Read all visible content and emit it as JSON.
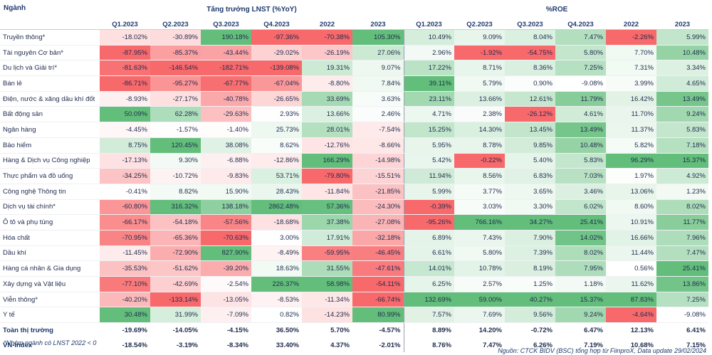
{
  "header": {
    "sector_label": "Ngành",
    "lnst_title": "Tăng trưởng LNST (%YoY)",
    "roe_title": "%ROE"
  },
  "columns": [
    "Q1.2023",
    "Q2.2023",
    "Q3.2023",
    "Q4.2023",
    "2022",
    "2023",
    "Q1.2023",
    "Q2.2023",
    "Q3.2023",
    "Q4.2023",
    "2022",
    "2023"
  ],
  "rows": [
    {
      "name": "Truyền thông*",
      "v": [
        "-18.02%",
        "-30.89%",
        "190.18%",
        "-97.36%",
        "-70.38%",
        "105.30%",
        "10.49%",
        "9.09%",
        "8.04%",
        "7.47%",
        "-2.26%",
        "5.99%"
      ],
      "n": [
        -18.02,
        -30.89,
        190.18,
        -97.36,
        -70.38,
        105.3,
        10.49,
        9.09,
        8.04,
        7.47,
        -2.26,
        5.99
      ]
    },
    {
      "name": "Tài nguyên Cơ bản*",
      "v": [
        "-87.95%",
        "-85.37%",
        "-43.44%",
        "-29.02%",
        "-26.19%",
        "27.06%",
        "2.96%",
        "-1.92%",
        "-54.75%",
        "5.80%",
        "7.70%",
        "10.48%"
      ],
      "n": [
        -87.95,
        -85.37,
        -43.44,
        -29.02,
        -26.19,
        27.06,
        2.96,
        -1.92,
        -54.75,
        5.8,
        7.7,
        10.48
      ]
    },
    {
      "name": "Du lịch và Giải trí*",
      "v": [
        "-81.63%",
        "-146.54%",
        "-182.71%",
        "-139.08%",
        "19.31%",
        "9.07%",
        "17.22%",
        "8.71%",
        "8.36%",
        "7.25%",
        "7.31%",
        "3.34%"
      ],
      "n": [
        -81.63,
        -146.54,
        -182.71,
        -139.08,
        19.31,
        9.07,
        17.22,
        8.71,
        8.36,
        7.25,
        7.31,
        3.34
      ]
    },
    {
      "name": "Bán lẻ",
      "v": [
        "-86.71%",
        "-95.27%",
        "-67.77%",
        "-67.04%",
        "-8.80%",
        "7.84%",
        "39.11%",
        "5.79%",
        "0.90%",
        "-9.08%",
        "3.99%",
        "4.65%"
      ],
      "n": [
        -86.71,
        -95.27,
        -67.77,
        -67.04,
        -8.8,
        7.84,
        39.11,
        5.79,
        0.9,
        -9.08,
        3.99,
        4.65
      ]
    },
    {
      "name": "Điện, nước & xăng dầu khí đốt",
      "v": [
        "-8.93%",
        "-27.17%",
        "-40.78%",
        "-26.65%",
        "33.69%",
        "3.63%",
        "23.11%",
        "13.66%",
        "12.61%",
        "11.79%",
        "16.42%",
        "13.49%"
      ],
      "n": [
        -8.93,
        -27.17,
        -40.78,
        -26.65,
        33.69,
        3.63,
        23.11,
        13.66,
        12.61,
        11.79,
        16.42,
        13.49
      ]
    },
    {
      "name": "Bất động sản",
      "v": [
        "50.09%",
        "62.28%",
        "-29.63%",
        "2.93%",
        "13.66%",
        "2.46%",
        "4.71%",
        "2.38%",
        "-26.12%",
        "4.61%",
        "11.70%",
        "9.24%"
      ],
      "n": [
        50.09,
        62.28,
        -29.63,
        2.93,
        13.66,
        2.46,
        4.71,
        2.38,
        -26.12,
        4.61,
        11.7,
        9.24
      ]
    },
    {
      "name": "Ngân hàng",
      "v": [
        "-4.45%",
        "-1.57%",
        "-1.40%",
        "25.73%",
        "28.01%",
        "-7.54%",
        "15.25%",
        "14.30%",
        "13.45%",
        "13.49%",
        "11.37%",
        "5.83%"
      ],
      "n": [
        -4.45,
        -1.57,
        -1.4,
        25.73,
        28.01,
        -7.54,
        15.25,
        14.3,
        13.45,
        13.49,
        11.37,
        5.83
      ]
    },
    {
      "name": "Bảo hiểm",
      "v": [
        "8.75%",
        "120.45%",
        "38.08%",
        "8.62%",
        "-12.76%",
        "-8.66%",
        "5.95%",
        "8.78%",
        "9.85%",
        "10.48%",
        "5.82%",
        "7.18%"
      ],
      "n": [
        8.75,
        120.45,
        38.08,
        8.62,
        -12.76,
        -8.66,
        5.95,
        8.78,
        9.85,
        10.48,
        5.82,
        7.18
      ]
    },
    {
      "name": "Hàng & Dịch vụ Công nghiệp",
      "v": [
        "-17.13%",
        "9.30%",
        "-6.88%",
        "-12.86%",
        "166.29%",
        "-14.98%",
        "5.42%",
        "-0.22%",
        "5.40%",
        "5.83%",
        "96.29%",
        "15.37%"
      ],
      "n": [
        -17.13,
        9.3,
        -6.88,
        -12.86,
        166.29,
        -14.98,
        5.42,
        -0.22,
        5.4,
        5.83,
        96.29,
        15.37
      ]
    },
    {
      "name": "Thực phẩm và đồ uống",
      "v": [
        "-34.25%",
        "-10.72%",
        "-9.83%",
        "53.71%",
        "-79.80%",
        "-15.51%",
        "11.94%",
        "8.56%",
        "6.83%",
        "7.03%",
        "1.97%",
        "4.92%"
      ],
      "n": [
        -34.25,
        -10.72,
        -9.83,
        53.71,
        -79.8,
        -15.51,
        11.94,
        8.56,
        6.83,
        7.03,
        1.97,
        4.92
      ]
    },
    {
      "name": "Công nghệ Thông tin",
      "v": [
        "-0.41%",
        "8.82%",
        "15.90%",
        "28.43%",
        "-11.84%",
        "-21.85%",
        "5.99%",
        "3.77%",
        "3.65%",
        "3.46%",
        "13.06%",
        "1.23%"
      ],
      "n": [
        -0.41,
        8.82,
        15.9,
        28.43,
        -11.84,
        -21.85,
        5.99,
        3.77,
        3.65,
        3.46,
        13.06,
        1.23
      ]
    },
    {
      "name": "Dịch vụ tài chính*",
      "v": [
        "-60.80%",
        "316.32%",
        "138.18%",
        "2862.48%",
        "57.36%",
        "-24.30%",
        "-0.39%",
        "3.03%",
        "3.30%",
        "6.02%",
        "8.60%",
        "8.02%"
      ],
      "n": [
        -60.8,
        316.32,
        138.18,
        2862.48,
        57.36,
        -24.3,
        -0.39,
        3.03,
        3.3,
        6.02,
        8.6,
        8.02
      ]
    },
    {
      "name": "Ô tô và phụ tùng",
      "v": [
        "-66.17%",
        "-54.18%",
        "-57.56%",
        "-18.68%",
        "37.38%",
        "-27.08%",
        "-95.26%",
        "766.16%",
        "34.27%",
        "25.41%",
        "10.91%",
        "11.77%"
      ],
      "n": [
        -66.17,
        -54.18,
        -57.56,
        -18.68,
        37.38,
        -27.08,
        -95.26,
        766.16,
        34.27,
        25.41,
        10.91,
        11.77
      ]
    },
    {
      "name": "Hóa chất",
      "v": [
        "-70.95%",
        "-65.36%",
        "-70.63%",
        "3.00%",
        "17.91%",
        "-32.18%",
        "6.89%",
        "7.43%",
        "7.90%",
        "14.02%",
        "16.66%",
        "7.96%"
      ],
      "n": [
        -70.95,
        -65.36,
        -70.63,
        3.0,
        17.91,
        -32.18,
        6.89,
        7.43,
        7.9,
        14.02,
        16.66,
        7.96
      ]
    },
    {
      "name": "Dầu khí",
      "v": [
        "-11.45%",
        "-72.90%",
        "827.90%",
        "-8.49%",
        "-59.95%",
        "-46.45%",
        "6.61%",
        "5.80%",
        "7.39%",
        "8.02%",
        "11.44%",
        "7.47%"
      ],
      "n": [
        -11.45,
        -72.9,
        827.9,
        -8.49,
        -59.95,
        -46.45,
        6.61,
        5.8,
        7.39,
        8.02,
        11.44,
        7.47
      ]
    },
    {
      "name": "Hàng cá nhân & Gia dụng",
      "v": [
        "-35.53%",
        "-51.62%",
        "-39.20%",
        "18.63%",
        "31.55%",
        "-47.61%",
        "14.01%",
        "10.78%",
        "8.19%",
        "7.95%",
        "0.56%",
        "25.41%"
      ],
      "n": [
        -35.53,
        -51.62,
        -39.2,
        18.63,
        31.55,
        -47.61,
        14.01,
        10.78,
        8.19,
        7.95,
        0.56,
        25.41
      ]
    },
    {
      "name": "Xây dựng và Vật liệu",
      "v": [
        "-77.10%",
        "-42.69%",
        "-2.54%",
        "226.37%",
        "58.98%",
        "-54.11%",
        "6.25%",
        "2.57%",
        "1.25%",
        "1.18%",
        "11.62%",
        "13.86%"
      ],
      "n": [
        -77.1,
        -42.69,
        -2.54,
        226.37,
        58.98,
        -54.11,
        6.25,
        2.57,
        1.25,
        1.18,
        11.62,
        13.86
      ]
    },
    {
      "name": "Viễn thông*",
      "v": [
        "-40.20%",
        "-133.14%",
        "-13.05%",
        "-8.53%",
        "-11.34%",
        "-66.74%",
        "132.69%",
        "59.00%",
        "40.27%",
        "15.37%",
        "87.83%",
        "7.25%"
      ],
      "n": [
        -40.2,
        -133.14,
        -13.05,
        -8.53,
        -11.34,
        -66.74,
        132.69,
        59.0,
        40.27,
        15.37,
        87.83,
        7.25
      ]
    },
    {
      "name": "Y tế",
      "v": [
        "30.48%",
        "31.99%",
        "-7.09%",
        "0.82%",
        "-14.23%",
        "80.99%",
        "7.57%",
        "7.69%",
        "9.56%",
        "9.24%",
        "-4.64%",
        "-9.08%"
      ],
      "n": [
        30.48,
        31.99,
        -7.09,
        0.82,
        -14.23,
        80.99,
        7.57,
        7.69,
        9.56,
        9.24,
        -4.64,
        -9.08
      ]
    }
  ],
  "totals": [
    {
      "name": "Toàn thị trường",
      "v": [
        "-19.69%",
        "-14.05%",
        "-4.15%",
        "36.50%",
        "5.70%",
        "-4.57%",
        "8.89%",
        "14.20%",
        "-0.72%",
        "6.47%",
        "12.13%",
        "6.41%"
      ]
    },
    {
      "name": "VN-Index",
      "v": [
        "-18.54%",
        "-3.19%",
        "-8.34%",
        "33.40%",
        "4.37%",
        "-2.01%",
        "8.76%",
        "7.47%",
        "6.26%",
        "7.19%",
        "10.68%",
        "7.15%"
      ]
    }
  ],
  "footnote": "*Nhóm ngành có LNST 2022 < 0",
  "source": "Nguồn: CTCK BIDV (BSC) tổng hợp từ FiinproX,  Data update 29/02/2024",
  "colors": {
    "positive": "#63be7b",
    "negative": "#f8696b",
    "neutral": "#ffffff"
  }
}
